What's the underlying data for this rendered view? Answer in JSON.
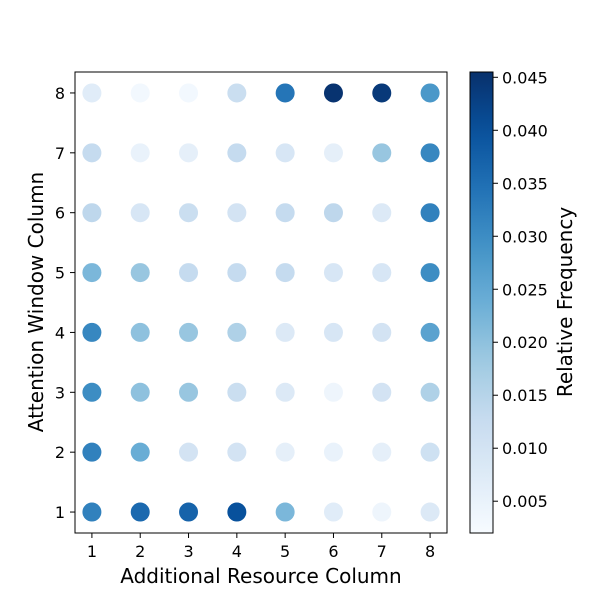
{
  "chart_data": {
    "type": "scatter",
    "xlabel": "Additional Resource Column",
    "ylabel": "Attention Window Column",
    "x_ticks": [
      "1",
      "2",
      "3",
      "4",
      "5",
      "6",
      "7",
      "8"
    ],
    "y_ticks": [
      "1",
      "2",
      "3",
      "4",
      "5",
      "6",
      "7",
      "8"
    ],
    "xlim": [
      0.65,
      8.35
    ],
    "ylim": [
      0.65,
      8.35
    ],
    "colorbar": {
      "label": "Relative Frequency",
      "min": 0.002,
      "max": 0.0455,
      "ticks": [
        "0.005",
        "0.010",
        "0.015",
        "0.020",
        "0.025",
        "0.030",
        "0.035",
        "0.040",
        "0.045"
      ],
      "tick_values": [
        0.005,
        0.01,
        0.015,
        0.02,
        0.025,
        0.03,
        0.035,
        0.04,
        0.045
      ],
      "colormap": "Blues"
    },
    "points": [
      {
        "x": 1,
        "y": 1,
        "value": 0.032
      },
      {
        "x": 2,
        "y": 1,
        "value": 0.036
      },
      {
        "x": 3,
        "y": 1,
        "value": 0.037
      },
      {
        "x": 4,
        "y": 1,
        "value": 0.04
      },
      {
        "x": 5,
        "y": 1,
        "value": 0.022
      },
      {
        "x": 6,
        "y": 1,
        "value": 0.007
      },
      {
        "x": 7,
        "y": 1,
        "value": 0.004
      },
      {
        "x": 8,
        "y": 1,
        "value": 0.008
      },
      {
        "x": 1,
        "y": 2,
        "value": 0.032
      },
      {
        "x": 2,
        "y": 2,
        "value": 0.024
      },
      {
        "x": 3,
        "y": 2,
        "value": 0.01
      },
      {
        "x": 4,
        "y": 2,
        "value": 0.01
      },
      {
        "x": 5,
        "y": 2,
        "value": 0.006
      },
      {
        "x": 6,
        "y": 2,
        "value": 0.005
      },
      {
        "x": 7,
        "y": 2,
        "value": 0.006
      },
      {
        "x": 8,
        "y": 2,
        "value": 0.011
      },
      {
        "x": 1,
        "y": 3,
        "value": 0.03
      },
      {
        "x": 2,
        "y": 3,
        "value": 0.02
      },
      {
        "x": 3,
        "y": 3,
        "value": 0.019
      },
      {
        "x": 4,
        "y": 3,
        "value": 0.012
      },
      {
        "x": 5,
        "y": 3,
        "value": 0.008
      },
      {
        "x": 6,
        "y": 3,
        "value": 0.004
      },
      {
        "x": 7,
        "y": 3,
        "value": 0.01
      },
      {
        "x": 8,
        "y": 3,
        "value": 0.016
      },
      {
        "x": 1,
        "y": 4,
        "value": 0.031
      },
      {
        "x": 2,
        "y": 4,
        "value": 0.02
      },
      {
        "x": 3,
        "y": 4,
        "value": 0.019
      },
      {
        "x": 4,
        "y": 4,
        "value": 0.016
      },
      {
        "x": 5,
        "y": 4,
        "value": 0.008
      },
      {
        "x": 6,
        "y": 4,
        "value": 0.009
      },
      {
        "x": 7,
        "y": 4,
        "value": 0.01
      },
      {
        "x": 8,
        "y": 4,
        "value": 0.026
      },
      {
        "x": 1,
        "y": 5,
        "value": 0.022
      },
      {
        "x": 2,
        "y": 5,
        "value": 0.019
      },
      {
        "x": 3,
        "y": 5,
        "value": 0.013
      },
      {
        "x": 4,
        "y": 5,
        "value": 0.013
      },
      {
        "x": 5,
        "y": 5,
        "value": 0.013
      },
      {
        "x": 6,
        "y": 5,
        "value": 0.009
      },
      {
        "x": 7,
        "y": 5,
        "value": 0.009
      },
      {
        "x": 8,
        "y": 5,
        "value": 0.03
      },
      {
        "x": 1,
        "y": 6,
        "value": 0.014
      },
      {
        "x": 2,
        "y": 6,
        "value": 0.009
      },
      {
        "x": 3,
        "y": 6,
        "value": 0.012
      },
      {
        "x": 4,
        "y": 6,
        "value": 0.01
      },
      {
        "x": 5,
        "y": 6,
        "value": 0.013
      },
      {
        "x": 6,
        "y": 6,
        "value": 0.014
      },
      {
        "x": 7,
        "y": 6,
        "value": 0.008
      },
      {
        "x": 8,
        "y": 6,
        "value": 0.032
      },
      {
        "x": 1,
        "y": 7,
        "value": 0.013
      },
      {
        "x": 2,
        "y": 7,
        "value": 0.005
      },
      {
        "x": 3,
        "y": 7,
        "value": 0.006
      },
      {
        "x": 4,
        "y": 7,
        "value": 0.013
      },
      {
        "x": 5,
        "y": 7,
        "value": 0.009
      },
      {
        "x": 6,
        "y": 7,
        "value": 0.006
      },
      {
        "x": 7,
        "y": 7,
        "value": 0.019
      },
      {
        "x": 8,
        "y": 7,
        "value": 0.031
      },
      {
        "x": 1,
        "y": 8,
        "value": 0.007
      },
      {
        "x": 2,
        "y": 8,
        "value": 0.003
      },
      {
        "x": 3,
        "y": 8,
        "value": 0.003
      },
      {
        "x": 4,
        "y": 8,
        "value": 0.012
      },
      {
        "x": 5,
        "y": 8,
        "value": 0.034
      },
      {
        "x": 6,
        "y": 8,
        "value": 0.045
      },
      {
        "x": 7,
        "y": 8,
        "value": 0.044
      },
      {
        "x": 8,
        "y": 8,
        "value": 0.028
      }
    ]
  }
}
